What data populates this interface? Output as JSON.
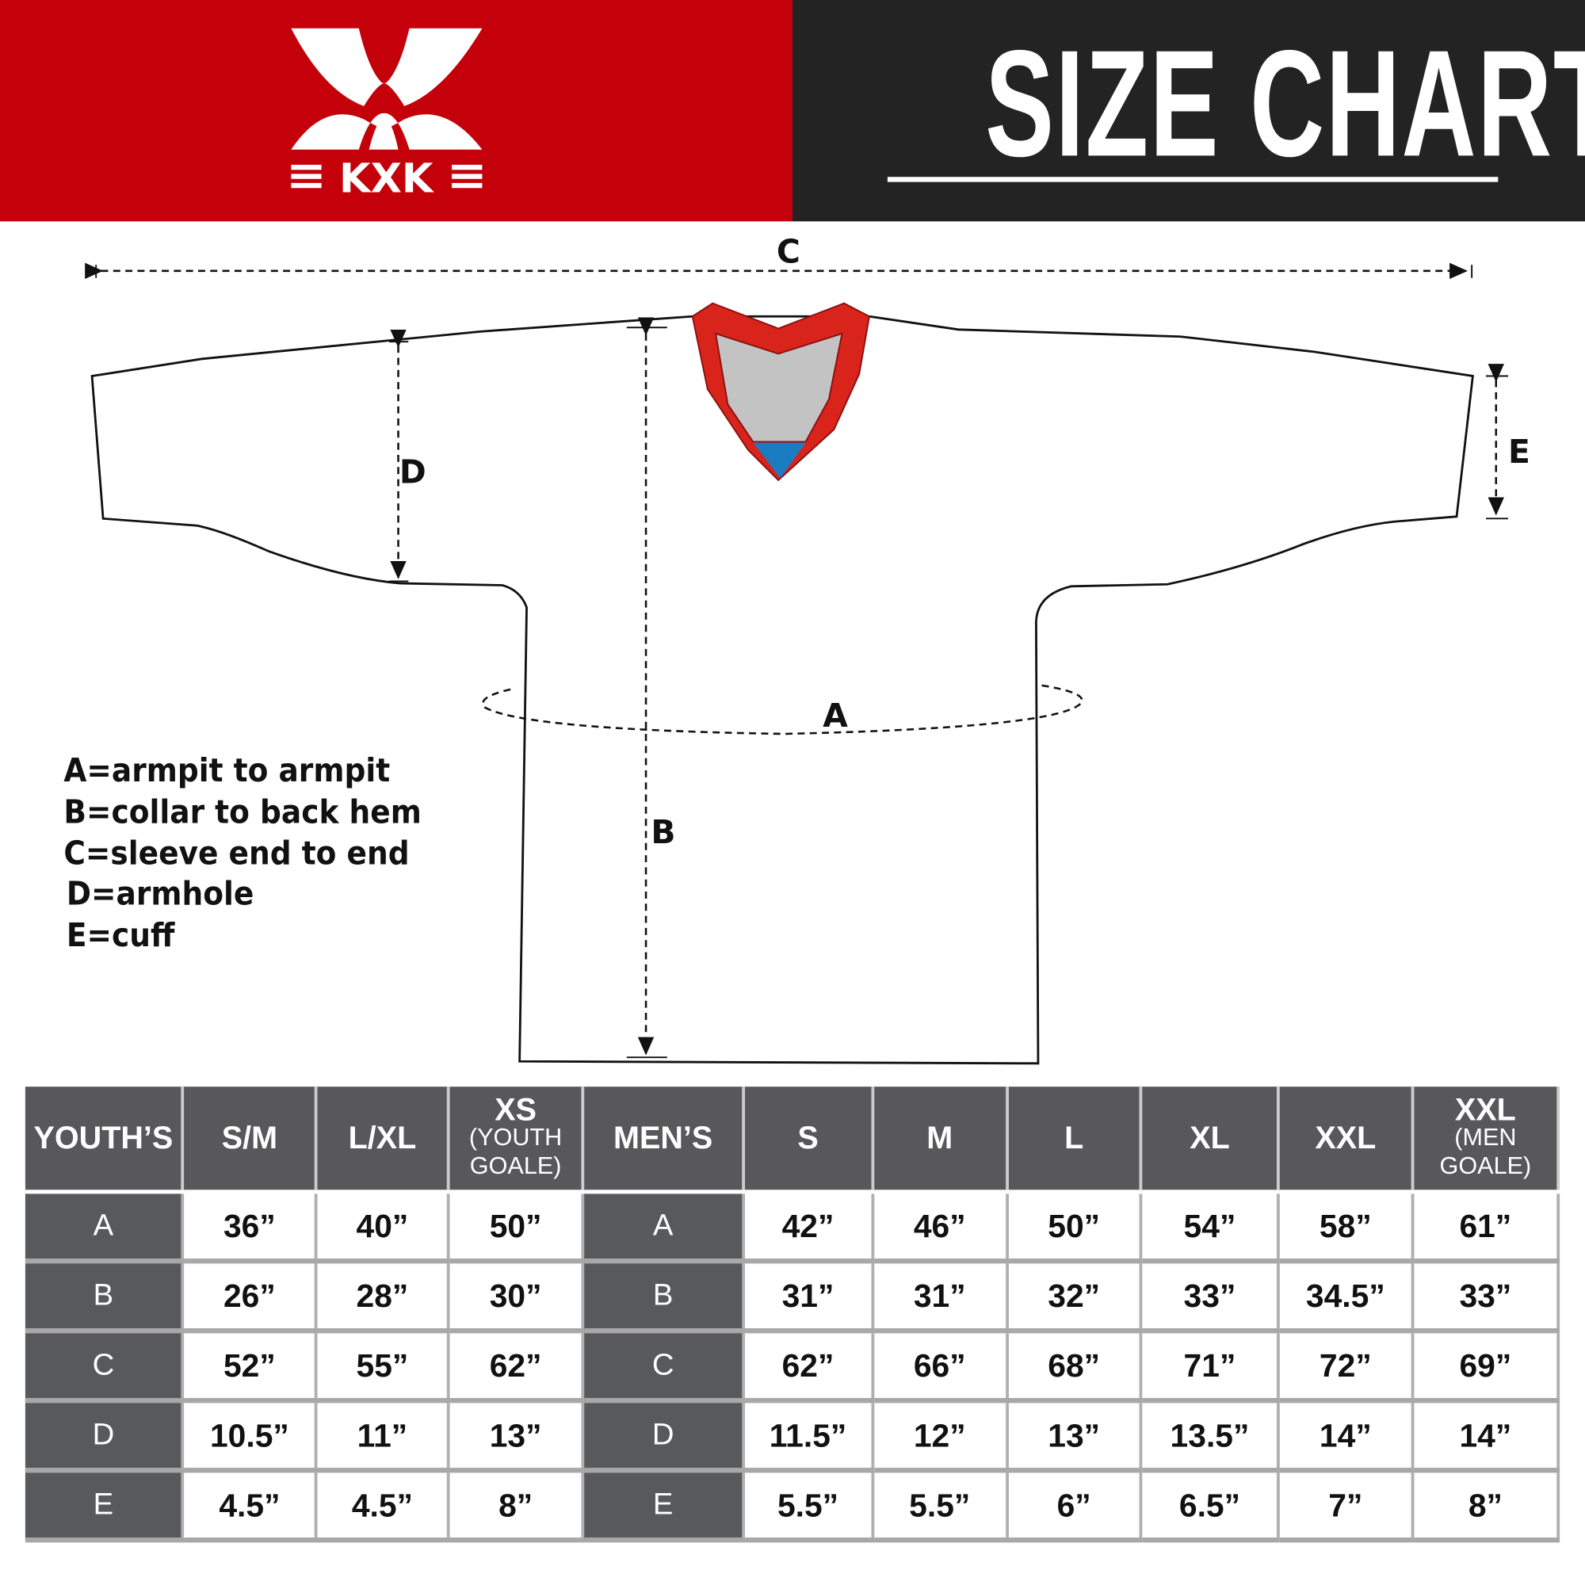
{
  "header": {
    "logo_text": "KXK",
    "title": "SIZE CHART",
    "colors": {
      "brand_red": "#c4000a",
      "dark": "#232323"
    }
  },
  "diagram": {
    "labels": {
      "a": "A",
      "b": "B",
      "c": "C",
      "d": "D",
      "e": "E"
    },
    "collar_colors": {
      "trim": "#d9241c",
      "inner": "#c3c3c3",
      "accent": "#1a7cc1"
    }
  },
  "legend": [
    "A=armpit to armpit",
    "B=collar to back hem",
    "C=sleeve end to end",
    "D=armhole",
    "E=cuff"
  ],
  "table": {
    "youth_header": "YOUTH’S",
    "men_header": "MEN’S",
    "youth_sizes": [
      {
        "main": "S/M"
      },
      {
        "main": "L/XL"
      },
      {
        "main": "XS",
        "sub": "(YOUTH GOALE)"
      }
    ],
    "men_sizes": [
      {
        "main": "S"
      },
      {
        "main": "M"
      },
      {
        "main": "L"
      },
      {
        "main": "XL"
      },
      {
        "main": "XXL"
      },
      {
        "main": "XXL",
        "sub": "(MEN GOALE)"
      }
    ],
    "rows": [
      {
        "label": "A",
        "youth": [
          "36”",
          "40”",
          "50”"
        ],
        "men": [
          "42”",
          "46”",
          "50”",
          "54”",
          "58”",
          "61”"
        ]
      },
      {
        "label": "B",
        "youth": [
          "26”",
          "28”",
          "30”"
        ],
        "men": [
          "31”",
          "31”",
          "32”",
          "33”",
          "34.5”",
          "33”"
        ]
      },
      {
        "label": "C",
        "youth": [
          "52”",
          "55”",
          "62”"
        ],
        "men": [
          "62”",
          "66”",
          "68”",
          "71”",
          "72”",
          "69”"
        ]
      },
      {
        "label": "D",
        "youth": [
          "10.5”",
          "11”",
          "13”"
        ],
        "men": [
          "11.5”",
          "12”",
          "13”",
          "13.5”",
          "14”",
          "14”"
        ]
      },
      {
        "label": "E",
        "youth": [
          "4.5”",
          "4.5”",
          "8”"
        ],
        "men": [
          "5.5”",
          "5.5”",
          "6”",
          "6.5”",
          "7”",
          "8”"
        ]
      }
    ]
  }
}
